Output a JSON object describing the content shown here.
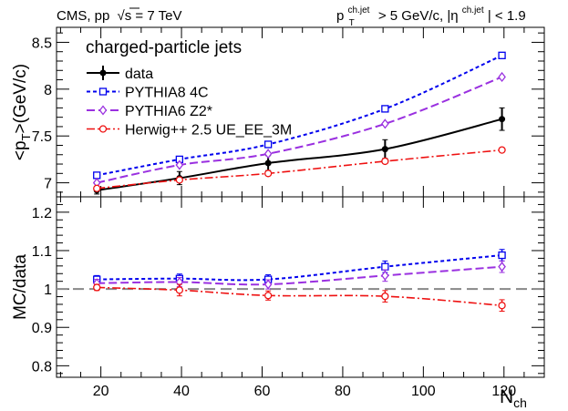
{
  "header": {
    "left_label": "CMS, pp",
    "sqrt_symbol": "√",
    "energy_label": "s = 7 TeV",
    "cut_pt_var": "p",
    "cut_pt_sub": "T",
    "cut_pt_sup": "ch.jet",
    "cut_pt_rest": " > 5 GeV/c, |η",
    "cut_eta_sup": "ch.jet",
    "cut_eta_rest": "| < 1.9"
  },
  "chart_data": [
    {
      "id": "top",
      "type": "line",
      "title": "charged-particle jets",
      "ylabel_main": "<p",
      "ylabel_sub": "T",
      "ylabel_rest": ">(GeV/c)",
      "ylim": [
        6.85,
        8.66
      ],
      "yticks": [
        {
          "v": 7,
          "label": "7"
        },
        {
          "v": 7.5,
          "label": "7.5"
        },
        {
          "v": 8,
          "label": "8"
        },
        {
          "v": 8.5,
          "label": "8.5"
        }
      ],
      "x": [
        19,
        39.5,
        61.5,
        90.5,
        119.5
      ],
      "series": [
        {
          "key": "data",
          "name": "data",
          "color": "#000000",
          "marker": "dot",
          "values": [
            6.92,
            7.05,
            7.21,
            7.36,
            7.68
          ],
          "errors": [
            0.04,
            0.07,
            0.08,
            0.1,
            0.12
          ]
        },
        {
          "key": "p8",
          "name": "PYTHIA8 4C",
          "color": "#0000ee",
          "marker": "square",
          "values": [
            7.08,
            7.25,
            7.41,
            7.79,
            8.36
          ],
          "errors": [
            0.01,
            0.01,
            0.01,
            0.01,
            0.01
          ]
        },
        {
          "key": "p6",
          "name": "PYTHIA6 Z2*",
          "color": "#9a30e0",
          "marker": "diamond",
          "values": [
            7.0,
            7.19,
            7.31,
            7.63,
            8.13
          ],
          "errors": [
            0.01,
            0.01,
            0.01,
            0.01,
            0.01
          ]
        },
        {
          "key": "hw",
          "name": "Herwig++ 2.5  UE_EE_3M",
          "color": "#ee1111",
          "marker": "circle",
          "values": [
            6.94,
            7.03,
            7.1,
            7.23,
            7.35
          ],
          "errors": [
            0.01,
            0.01,
            0.01,
            0.01,
            0.01
          ]
        }
      ]
    },
    {
      "id": "ratio",
      "type": "line",
      "ylabel": "MC/data",
      "xlabel_main": "N",
      "xlabel_sub": "ch",
      "ylim": [
        0.77,
        1.24
      ],
      "yticks": [
        {
          "v": 0.8,
          "label": "0.8"
        },
        {
          "v": 0.9,
          "label": "0.9"
        },
        {
          "v": 1.0,
          "label": "1"
        },
        {
          "v": 1.1,
          "label": "1.1"
        },
        {
          "v": 1.2,
          "label": "1.2"
        }
      ],
      "xlim": [
        9,
        130
      ],
      "xticks": [
        {
          "v": 20,
          "label": "20"
        },
        {
          "v": 40,
          "label": "40"
        },
        {
          "v": 60,
          "label": "60"
        },
        {
          "v": 80,
          "label": "80"
        },
        {
          "v": 100,
          "label": "100"
        },
        {
          "v": 120,
          "label": "120"
        }
      ],
      "reference_line": 1.0,
      "x": [
        19,
        39.5,
        61.5,
        90.5,
        119.5
      ],
      "series": [
        {
          "key": "p8",
          "name": "PYTHIA8 4C",
          "color": "#0000ee",
          "marker": "square",
          "values": [
            1.025,
            1.027,
            1.025,
            1.058,
            1.088
          ],
          "errors": [
            0.01,
            0.012,
            0.012,
            0.015,
            0.015
          ]
        },
        {
          "key": "p6",
          "name": "PYTHIA6 Z2*",
          "color": "#9a30e0",
          "marker": "diamond",
          "values": [
            1.015,
            1.018,
            1.012,
            1.035,
            1.058
          ],
          "errors": [
            0.01,
            0.012,
            0.012,
            0.015,
            0.015
          ]
        },
        {
          "key": "hw",
          "name": "Herwig++ 2.5  UE_EE_3M",
          "color": "#ee1111",
          "marker": "circle",
          "values": [
            1.004,
            0.997,
            0.983,
            0.981,
            0.957
          ],
          "errors": [
            0.008,
            0.015,
            0.012,
            0.015,
            0.015
          ]
        }
      ]
    }
  ]
}
